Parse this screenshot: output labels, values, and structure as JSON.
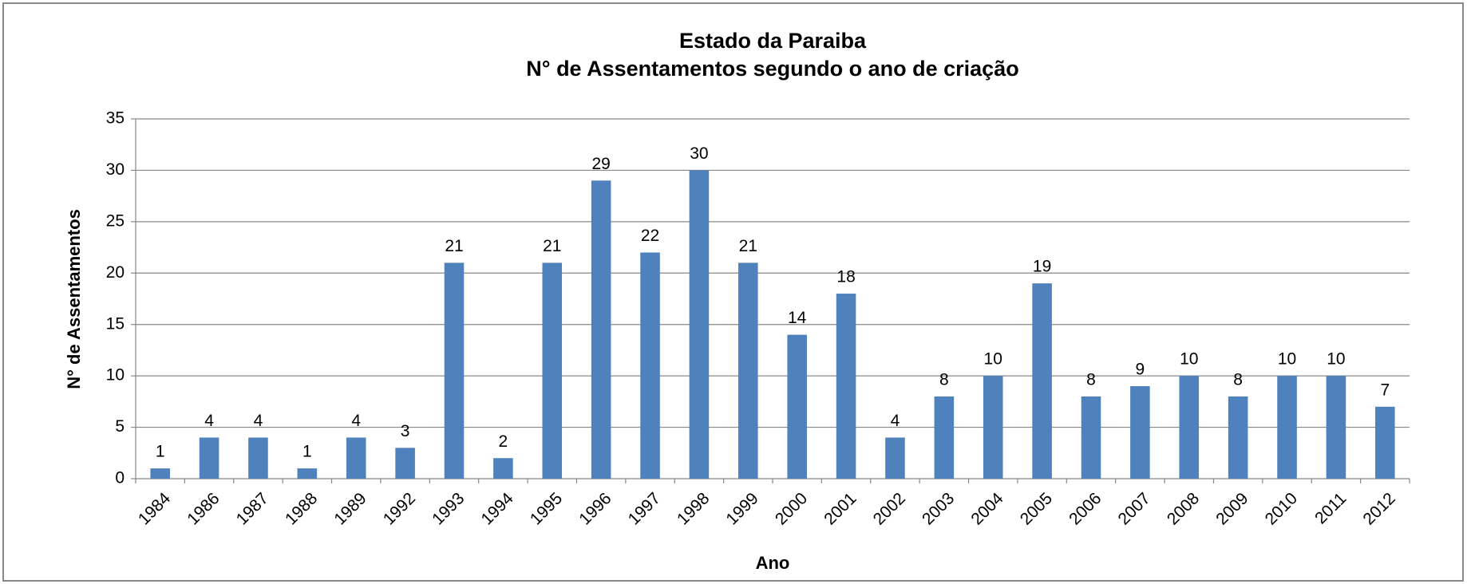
{
  "chart_data": {
    "type": "bar",
    "title": "Estado da Paraiba",
    "subtitle": "N° de Assentamentos segundo o ano de criação",
    "x_label": "Ano",
    "y_label": "N° de Assentamentos",
    "categories": [
      "1984",
      "1986",
      "1987",
      "1988",
      "1989",
      "1992",
      "1993",
      "1994",
      "1995",
      "1996",
      "1997",
      "1998",
      "1999",
      "2000",
      "2001",
      "2002",
      "2003",
      "2004",
      "2005",
      "2006",
      "2007",
      "2008",
      "2009",
      "2010",
      "2011",
      "2012"
    ],
    "values": [
      1,
      4,
      4,
      1,
      4,
      3,
      21,
      2,
      21,
      29,
      22,
      30,
      21,
      14,
      18,
      4,
      8,
      10,
      19,
      8,
      9,
      10,
      8,
      10,
      10,
      7
    ],
    "color": "#4f81bd",
    "ylim": [
      0,
      35
    ],
    "yticks": [
      0,
      5,
      10,
      15,
      20,
      25,
      30,
      35
    ],
    "grid": true
  }
}
